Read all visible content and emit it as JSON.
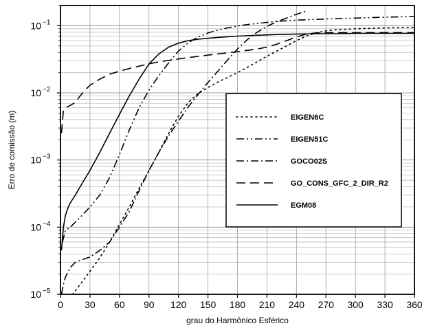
{
  "chart_data": {
    "type": "line",
    "xlabel": "grau do Harmônico Esférico",
    "ylabel": "Erro de comissão (m)",
    "xlim": [
      0,
      360
    ],
    "ylim": [
      1e-05,
      0.2
    ],
    "yscale": "log",
    "grid": true,
    "legend_position": "center-right",
    "x_ticks": [
      "0",
      "30",
      "60",
      "90",
      "120",
      "150",
      "180",
      "210",
      "240",
      "270",
      "300",
      "330",
      "360"
    ],
    "y_ticks": [
      {
        "value": 1e-05,
        "base": "10",
        "exp": "−5"
      },
      {
        "value": 0.0001,
        "base": "10",
        "exp": "−4"
      },
      {
        "value": 0.001,
        "base": "10",
        "exp": "−3"
      },
      {
        "value": 0.01,
        "base": "10",
        "exp": "−2"
      },
      {
        "value": 0.1,
        "base": "10",
        "exp": "−1"
      }
    ],
    "series": [
      {
        "name": "EIGEN6C",
        "dash": "dot",
        "x": [
          5,
          10,
          20,
          30,
          40,
          50,
          60,
          70,
          80,
          90,
          100,
          110,
          120,
          130,
          140,
          150,
          160,
          170,
          180,
          190,
          200,
          210,
          220,
          230,
          240,
          250,
          260,
          270,
          280,
          300,
          330,
          360
        ],
        "y": [
          8e-06,
          9e-06,
          1.4e-05,
          2.2e-05,
          3.5e-05,
          6e-05,
          0.00011,
          0.0002,
          0.00038,
          0.0007,
          0.0013,
          0.0025,
          0.0045,
          0.0072,
          0.0098,
          0.012,
          0.0145,
          0.017,
          0.02,
          0.024,
          0.029,
          0.035,
          0.042,
          0.05,
          0.06,
          0.07,
          0.078,
          0.084,
          0.087,
          0.09,
          0.093,
          0.094
        ]
      },
      {
        "name": "EIGEN51C",
        "dash": "dashdotdot",
        "x": [
          2,
          5,
          10,
          20,
          30,
          40,
          50,
          60,
          70,
          80,
          90,
          100,
          110,
          120,
          130,
          140,
          150,
          160,
          170,
          180,
          190,
          200,
          210,
          220,
          240,
          270,
          300,
          330,
          360
        ],
        "y": [
          6e-05,
          9e-05,
          0.0001,
          0.00014,
          0.0002,
          0.0003,
          0.00055,
          0.0012,
          0.0028,
          0.006,
          0.011,
          0.018,
          0.028,
          0.042,
          0.056,
          0.068,
          0.078,
          0.086,
          0.093,
          0.099,
          0.104,
          0.108,
          0.112,
          0.116,
          0.121,
          0.126,
          0.13,
          0.134,
          0.137
        ]
      },
      {
        "name": "GOCO02S",
        "dash": "dashdot",
        "x": [
          1,
          3,
          5,
          8,
          10,
          15,
          20,
          30,
          40,
          50,
          60,
          70,
          80,
          90,
          100,
          110,
          120,
          130,
          140,
          150,
          160,
          170,
          180,
          190,
          200,
          210,
          220,
          230,
          240,
          250
        ],
        "y": [
          1e-05,
          1.4e-05,
          1.8e-05,
          2.2e-05,
          2.5e-05,
          3e-05,
          3.2e-05,
          3.6e-05,
          4.5e-05,
          6e-05,
          0.0001,
          0.00017,
          0.00035,
          0.0007,
          0.0013,
          0.0023,
          0.0038,
          0.0062,
          0.0095,
          0.0143,
          0.021,
          0.031,
          0.045,
          0.062,
          0.08,
          0.098,
          0.115,
          0.13,
          0.148,
          0.165
        ]
      },
      {
        "name": "GO_CONS_GFC_2_DIR_R2",
        "dash": "dash",
        "x": [
          1,
          3,
          5,
          10,
          15,
          20,
          25,
          30,
          40,
          50,
          60,
          70,
          80,
          90,
          100,
          120,
          140,
          160,
          180,
          200,
          210,
          220,
          230,
          240,
          250,
          260,
          270,
          300,
          330,
          360
        ],
        "y": [
          0.0025,
          0.0055,
          0.006,
          0.0065,
          0.0072,
          0.009,
          0.011,
          0.013,
          0.016,
          0.019,
          0.021,
          0.023,
          0.025,
          0.027,
          0.029,
          0.032,
          0.035,
          0.038,
          0.041,
          0.045,
          0.048,
          0.053,
          0.06,
          0.068,
          0.075,
          0.078,
          0.079,
          0.079,
          0.079,
          0.079
        ]
      },
      {
        "name": "EGM08",
        "dash": "solid",
        "x": [
          1,
          3,
          5,
          8,
          10,
          15,
          20,
          30,
          40,
          50,
          60,
          70,
          80,
          90,
          100,
          110,
          120,
          130,
          140,
          150,
          160,
          180,
          200,
          220,
          240,
          260,
          280,
          300,
          330,
          360
        ],
        "y": [
          4.5e-05,
          0.0001,
          0.00015,
          0.0002,
          0.00023,
          0.0003,
          0.0004,
          0.0007,
          0.0013,
          0.0025,
          0.0048,
          0.009,
          0.016,
          0.027,
          0.038,
          0.048,
          0.055,
          0.06,
          0.063,
          0.065,
          0.067,
          0.07,
          0.072,
          0.074,
          0.075,
          0.076,
          0.076,
          0.077,
          0.077,
          0.077
        ]
      }
    ]
  }
}
